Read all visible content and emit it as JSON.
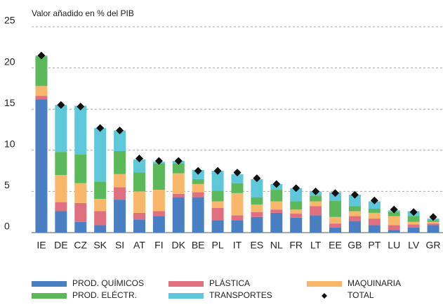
{
  "chart_data": {
    "type": "stacked-bar",
    "y_label": "Valor añadido en % del PIB",
    "categories": [
      "IE",
      "DE",
      "CZ",
      "SK",
      "SI",
      "AT",
      "FI",
      "DK",
      "BE",
      "PL",
      "IT",
      "ES",
      "NL",
      "FR",
      "LT",
      "EE",
      "GB",
      "PT",
      "LU",
      "LV",
      "GR"
    ],
    "series": [
      {
        "name": "PROD. QUÍMICOS",
        "color": "#4a7fc4",
        "values": [
          16.2,
          2.6,
          1.3,
          0.9,
          4.0,
          1.6,
          2.0,
          4.3,
          4.3,
          1.5,
          1.5,
          1.9,
          2.4,
          1.8,
          2.1,
          0.6,
          1.4,
          0.9,
          0.3,
          0.6,
          0.9
        ]
      },
      {
        "name": "PLÁSTICA",
        "color": "#e0707f",
        "values": [
          0.4,
          1.1,
          2.3,
          1.7,
          1.5,
          0.8,
          0.6,
          0.4,
          0.6,
          1.5,
          0.6,
          0.6,
          0.4,
          0.5,
          1.1,
          0.5,
          0.6,
          0.8,
          0.6,
          0.4,
          0.2
        ]
      },
      {
        "name": "MAQUINARIA",
        "color": "#f9b76b",
        "values": [
          1.2,
          3.3,
          2.4,
          1.5,
          1.6,
          2.6,
          2.6,
          2.5,
          1.0,
          0.8,
          2.7,
          0.9,
          1.0,
          0.5,
          0.6,
          0.8,
          0.6,
          0.7,
          1.1,
          0.3,
          0.2
        ]
      },
      {
        "name": "PROD. ELÉCTR.",
        "color": "#5bb95b",
        "values": [
          3.6,
          2.8,
          3.5,
          2.1,
          2.8,
          2.3,
          3.2,
          1.2,
          0.6,
          1.3,
          1.2,
          0.9,
          1.4,
          1.0,
          0.7,
          2.0,
          0.6,
          0.5,
          0.5,
          0.7,
          0.2
        ]
      },
      {
        "name": "TRANSPORTES",
        "color": "#5ec7d9",
        "values": [
          0.1,
          5.7,
          5.9,
          6.5,
          2.5,
          1.6,
          0.2,
          0.3,
          1.1,
          2.4,
          1.1,
          2.2,
          0.7,
          1.6,
          0.5,
          1.0,
          1.4,
          0.9,
          0.2,
          0.6,
          0.2
        ]
      }
    ],
    "total": {
      "name": "TOTAL",
      "color": "#111111",
      "values": [
        21.5,
        15.5,
        15.3,
        12.7,
        12.4,
        9.0,
        8.7,
        8.7,
        7.5,
        7.5,
        7.3,
        6.6,
        5.9,
        5.4,
        5.0,
        4.8,
        4.6,
        3.9,
        2.8,
        2.5,
        1.9
      ]
    },
    "ylim": [
      0,
      25
    ],
    "yticks": [
      0,
      5,
      10,
      15,
      20,
      25
    ],
    "grid": true,
    "legend": "bottom"
  }
}
